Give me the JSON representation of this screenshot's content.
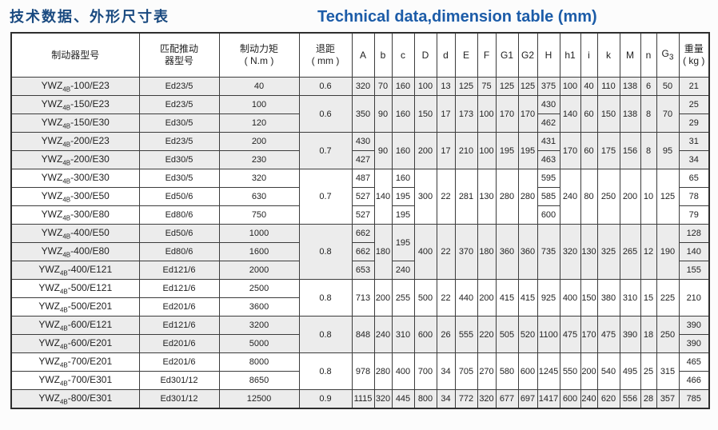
{
  "page": {
    "title_zh": "技术数据、外形尺寸表",
    "title_en": "Technical data,dimension table (mm)"
  },
  "colors": {
    "title_zh": "#1a4a80",
    "title_en": "#1c5ca8",
    "border": "#3c3c3c",
    "row_shade": "#ececec"
  },
  "table": {
    "headers": {
      "model": "制动器型号",
      "thruster": [
        "匹配推动",
        "器型号"
      ],
      "torque": [
        "制动力矩",
        "( N.m )"
      ],
      "gap": [
        "退距",
        "( mm )"
      ],
      "dims": [
        "A",
        "b",
        "c",
        "D",
        "d",
        "E",
        "F",
        "G1",
        "G2",
        "H",
        "h1",
        "i",
        "k",
        "M",
        "n",
        "G3"
      ],
      "weight": [
        "重量",
        "( kg )"
      ]
    },
    "rows": [
      {
        "shade": true,
        "model": [
          "YWZ",
          "4B",
          "-100/E23"
        ],
        "cells": [
          [
            "Ed23/5",
            1
          ],
          [
            "40",
            1
          ],
          [
            "0.6",
            1
          ],
          [
            "320",
            1
          ],
          [
            "70",
            1
          ],
          [
            "160",
            1
          ],
          [
            "100",
            1
          ],
          [
            "13",
            1
          ],
          [
            "125",
            1
          ],
          [
            "75",
            1
          ],
          [
            "125",
            1
          ],
          [
            "125",
            1
          ],
          [
            "375",
            1
          ],
          [
            "100",
            1
          ],
          [
            "40",
            1
          ],
          [
            "110",
            1
          ],
          [
            "138",
            1
          ],
          [
            "6",
            1
          ],
          [
            "50",
            1
          ],
          [
            "21",
            1
          ]
        ]
      },
      {
        "shade": true,
        "model": [
          "YWZ",
          "4B",
          "-150/E23"
        ],
        "cells": [
          [
            "Ed23/5",
            1
          ],
          [
            "100",
            1
          ],
          [
            "0.6",
            2
          ],
          [
            "350",
            2
          ],
          [
            "90",
            2
          ],
          [
            "160",
            2
          ],
          [
            "150",
            2
          ],
          [
            "17",
            2
          ],
          [
            "173",
            2
          ],
          [
            "100",
            2
          ],
          [
            "170",
            2
          ],
          [
            "170",
            2
          ],
          [
            "430",
            1
          ],
          [
            "140",
            2
          ],
          [
            "60",
            2
          ],
          [
            "150",
            2
          ],
          [
            "138",
            2
          ],
          [
            "8",
            2
          ],
          [
            "70",
            2
          ],
          [
            "25",
            1
          ]
        ]
      },
      {
        "shade": true,
        "model": [
          "YWZ",
          "4B",
          "-150/E30"
        ],
        "cells": [
          [
            "Ed30/5",
            1
          ],
          [
            "120",
            1
          ],
          [
            "462",
            1
          ],
          [
            "29",
            1
          ]
        ]
      },
      {
        "shade": true,
        "model": [
          "YWZ",
          "4B",
          "-200/E23"
        ],
        "cells": [
          [
            "Ed23/5",
            1
          ],
          [
            "200",
            1
          ],
          [
            "0.7",
            2
          ],
          [
            "430",
            1
          ],
          [
            "90",
            2
          ],
          [
            "160",
            2
          ],
          [
            "200",
            2
          ],
          [
            "17",
            2
          ],
          [
            "210",
            2
          ],
          [
            "100",
            2
          ],
          [
            "195",
            2
          ],
          [
            "195",
            2
          ],
          [
            "431",
            1
          ],
          [
            "170",
            2
          ],
          [
            "60",
            2
          ],
          [
            "175",
            2
          ],
          [
            "156",
            2
          ],
          [
            "8",
            2
          ],
          [
            "95",
            2
          ],
          [
            "31",
            1
          ]
        ]
      },
      {
        "shade": true,
        "model": [
          "YWZ",
          "4B",
          "-200/E30"
        ],
        "cells": [
          [
            "Ed30/5",
            1
          ],
          [
            "230",
            1
          ],
          [
            "427",
            1
          ],
          [
            "463",
            1
          ],
          [
            "34",
            1
          ]
        ]
      },
      {
        "shade": false,
        "model": [
          "YWZ",
          "4B",
          "-300/E30"
        ],
        "cells": [
          [
            "Ed30/5",
            1
          ],
          [
            "320",
            1
          ],
          [
            "0.7",
            3
          ],
          [
            "487",
            1
          ],
          [
            "140",
            3
          ],
          [
            "160",
            1
          ],
          [
            "300",
            3
          ],
          [
            "22",
            3
          ],
          [
            "281",
            3
          ],
          [
            "130",
            3
          ],
          [
            "280",
            3
          ],
          [
            "280",
            3
          ],
          [
            "595",
            1
          ],
          [
            "240",
            3
          ],
          [
            "80",
            3
          ],
          [
            "250",
            3
          ],
          [
            "200",
            3
          ],
          [
            "10",
            3
          ],
          [
            "125",
            3
          ],
          [
            "65",
            1
          ]
        ]
      },
      {
        "shade": false,
        "model": [
          "YWZ",
          "4B",
          "-300/E50"
        ],
        "cells": [
          [
            "Ed50/6",
            1
          ],
          [
            "630",
            1
          ],
          [
            "527",
            1
          ],
          [
            "195",
            1
          ],
          [
            "585",
            1
          ],
          [
            "78",
            1
          ]
        ]
      },
      {
        "shade": false,
        "model": [
          "YWZ",
          "4B",
          "-300/E80"
        ],
        "cells": [
          [
            "Ed80/6",
            1
          ],
          [
            "750",
            1
          ],
          [
            "527",
            1
          ],
          [
            "195",
            1
          ],
          [
            "600",
            1
          ],
          [
            "79",
            1
          ]
        ]
      },
      {
        "shade": true,
        "model": [
          "YWZ",
          "4B",
          "-400/E50"
        ],
        "cells": [
          [
            "Ed50/6",
            1
          ],
          [
            "1000",
            1
          ],
          [
            "0.8",
            3
          ],
          [
            "662",
            1
          ],
          [
            "180",
            3
          ],
          [
            "195",
            2
          ],
          [
            "400",
            3
          ],
          [
            "22",
            3
          ],
          [
            "370",
            3
          ],
          [
            "180",
            3
          ],
          [
            "360",
            3
          ],
          [
            "360",
            3
          ],
          [
            "735",
            3
          ],
          [
            "320",
            3
          ],
          [
            "130",
            3
          ],
          [
            "325",
            3
          ],
          [
            "265",
            3
          ],
          [
            "12",
            3
          ],
          [
            "190",
            3
          ],
          [
            "128",
            1
          ]
        ]
      },
      {
        "shade": true,
        "model": [
          "YWZ",
          "4B",
          "-400/E80"
        ],
        "cells": [
          [
            "Ed80/6",
            1
          ],
          [
            "1600",
            1
          ],
          [
            "662",
            1
          ],
          [
            "140",
            1
          ]
        ]
      },
      {
        "shade": true,
        "model": [
          "YWZ",
          "4B",
          "-400/E121"
        ],
        "cells": [
          [
            "Ed121/6",
            1
          ],
          [
            "2000",
            1
          ],
          [
            "653",
            1
          ],
          [
            "240",
            1
          ],
          [
            "155",
            1
          ]
        ]
      },
      {
        "shade": false,
        "model": [
          "YWZ",
          "4B",
          "-500/E121"
        ],
        "cells": [
          [
            "Ed121/6",
            1
          ],
          [
            "2500",
            1
          ],
          [
            "0.8",
            2
          ],
          [
            "713",
            2
          ],
          [
            "200",
            2
          ],
          [
            "255",
            2
          ],
          [
            "500",
            2
          ],
          [
            "22",
            2
          ],
          [
            "440",
            2
          ],
          [
            "200",
            2
          ],
          [
            "415",
            2
          ],
          [
            "415",
            2
          ],
          [
            "925",
            2
          ],
          [
            "400",
            2
          ],
          [
            "150",
            2
          ],
          [
            "380",
            2
          ],
          [
            "310",
            2
          ],
          [
            "15",
            2
          ],
          [
            "225",
            2
          ],
          [
            "210",
            2
          ]
        ]
      },
      {
        "shade": false,
        "model": [
          "YWZ",
          "4B",
          "-500/E201"
        ],
        "cells": [
          [
            "Ed201/6",
            1
          ],
          [
            "3600",
            1
          ]
        ]
      },
      {
        "shade": true,
        "model": [
          "YWZ",
          "4B",
          "-600/E121"
        ],
        "cells": [
          [
            "Ed121/6",
            1
          ],
          [
            "3200",
            1
          ],
          [
            "0.8",
            2
          ],
          [
            "848",
            2
          ],
          [
            "240",
            2
          ],
          [
            "310",
            2
          ],
          [
            "600",
            2
          ],
          [
            "26",
            2
          ],
          [
            "555",
            2
          ],
          [
            "220",
            2
          ],
          [
            "505",
            2
          ],
          [
            "520",
            2
          ],
          [
            "1100",
            2
          ],
          [
            "475",
            2
          ],
          [
            "170",
            2
          ],
          [
            "475",
            2
          ],
          [
            "390",
            2
          ],
          [
            "18",
            2
          ],
          [
            "250",
            2
          ],
          [
            "390",
            1
          ]
        ]
      },
      {
        "shade": true,
        "model": [
          "YWZ",
          "4B",
          "-600/E201"
        ],
        "cells": [
          [
            "Ed201/6",
            1
          ],
          [
            "5000",
            1
          ],
          [
            "390",
            1
          ]
        ]
      },
      {
        "shade": false,
        "model": [
          "YWZ",
          "4B",
          "-700/E201"
        ],
        "cells": [
          [
            "Ed201/6",
            1
          ],
          [
            "8000",
            1
          ],
          [
            "0.8",
            2
          ],
          [
            "978",
            2
          ],
          [
            "280",
            2
          ],
          [
            "400",
            2
          ],
          [
            "700",
            2
          ],
          [
            "34",
            2
          ],
          [
            "705",
            2
          ],
          [
            "270",
            2
          ],
          [
            "580",
            2
          ],
          [
            "600",
            2
          ],
          [
            "1245",
            2
          ],
          [
            "550",
            2
          ],
          [
            "200",
            2
          ],
          [
            "540",
            2
          ],
          [
            "495",
            2
          ],
          [
            "25",
            2
          ],
          [
            "315",
            2
          ],
          [
            "465",
            1
          ]
        ]
      },
      {
        "shade": false,
        "model": [
          "YWZ",
          "4B",
          "-700/E301"
        ],
        "cells": [
          [
            "Ed301/12",
            1
          ],
          [
            "8650",
            1
          ],
          [
            "466",
            1
          ]
        ]
      },
      {
        "shade": true,
        "model": [
          "YWZ",
          "4B",
          "-800/E301"
        ],
        "cells": [
          [
            "Ed301/12",
            1
          ],
          [
            "12500",
            1
          ],
          [
            "0.9",
            1
          ],
          [
            "1115",
            1
          ],
          [
            "320",
            1
          ],
          [
            "445",
            1
          ],
          [
            "800",
            1
          ],
          [
            "34",
            1
          ],
          [
            "772",
            1
          ],
          [
            "320",
            1
          ],
          [
            "677",
            1
          ],
          [
            "697",
            1
          ],
          [
            "1417",
            1
          ],
          [
            "600",
            1
          ],
          [
            "240",
            1
          ],
          [
            "620",
            1
          ],
          [
            "556",
            1
          ],
          [
            "28",
            1
          ],
          [
            "357",
            1
          ],
          [
            "785",
            1
          ]
        ]
      }
    ]
  }
}
